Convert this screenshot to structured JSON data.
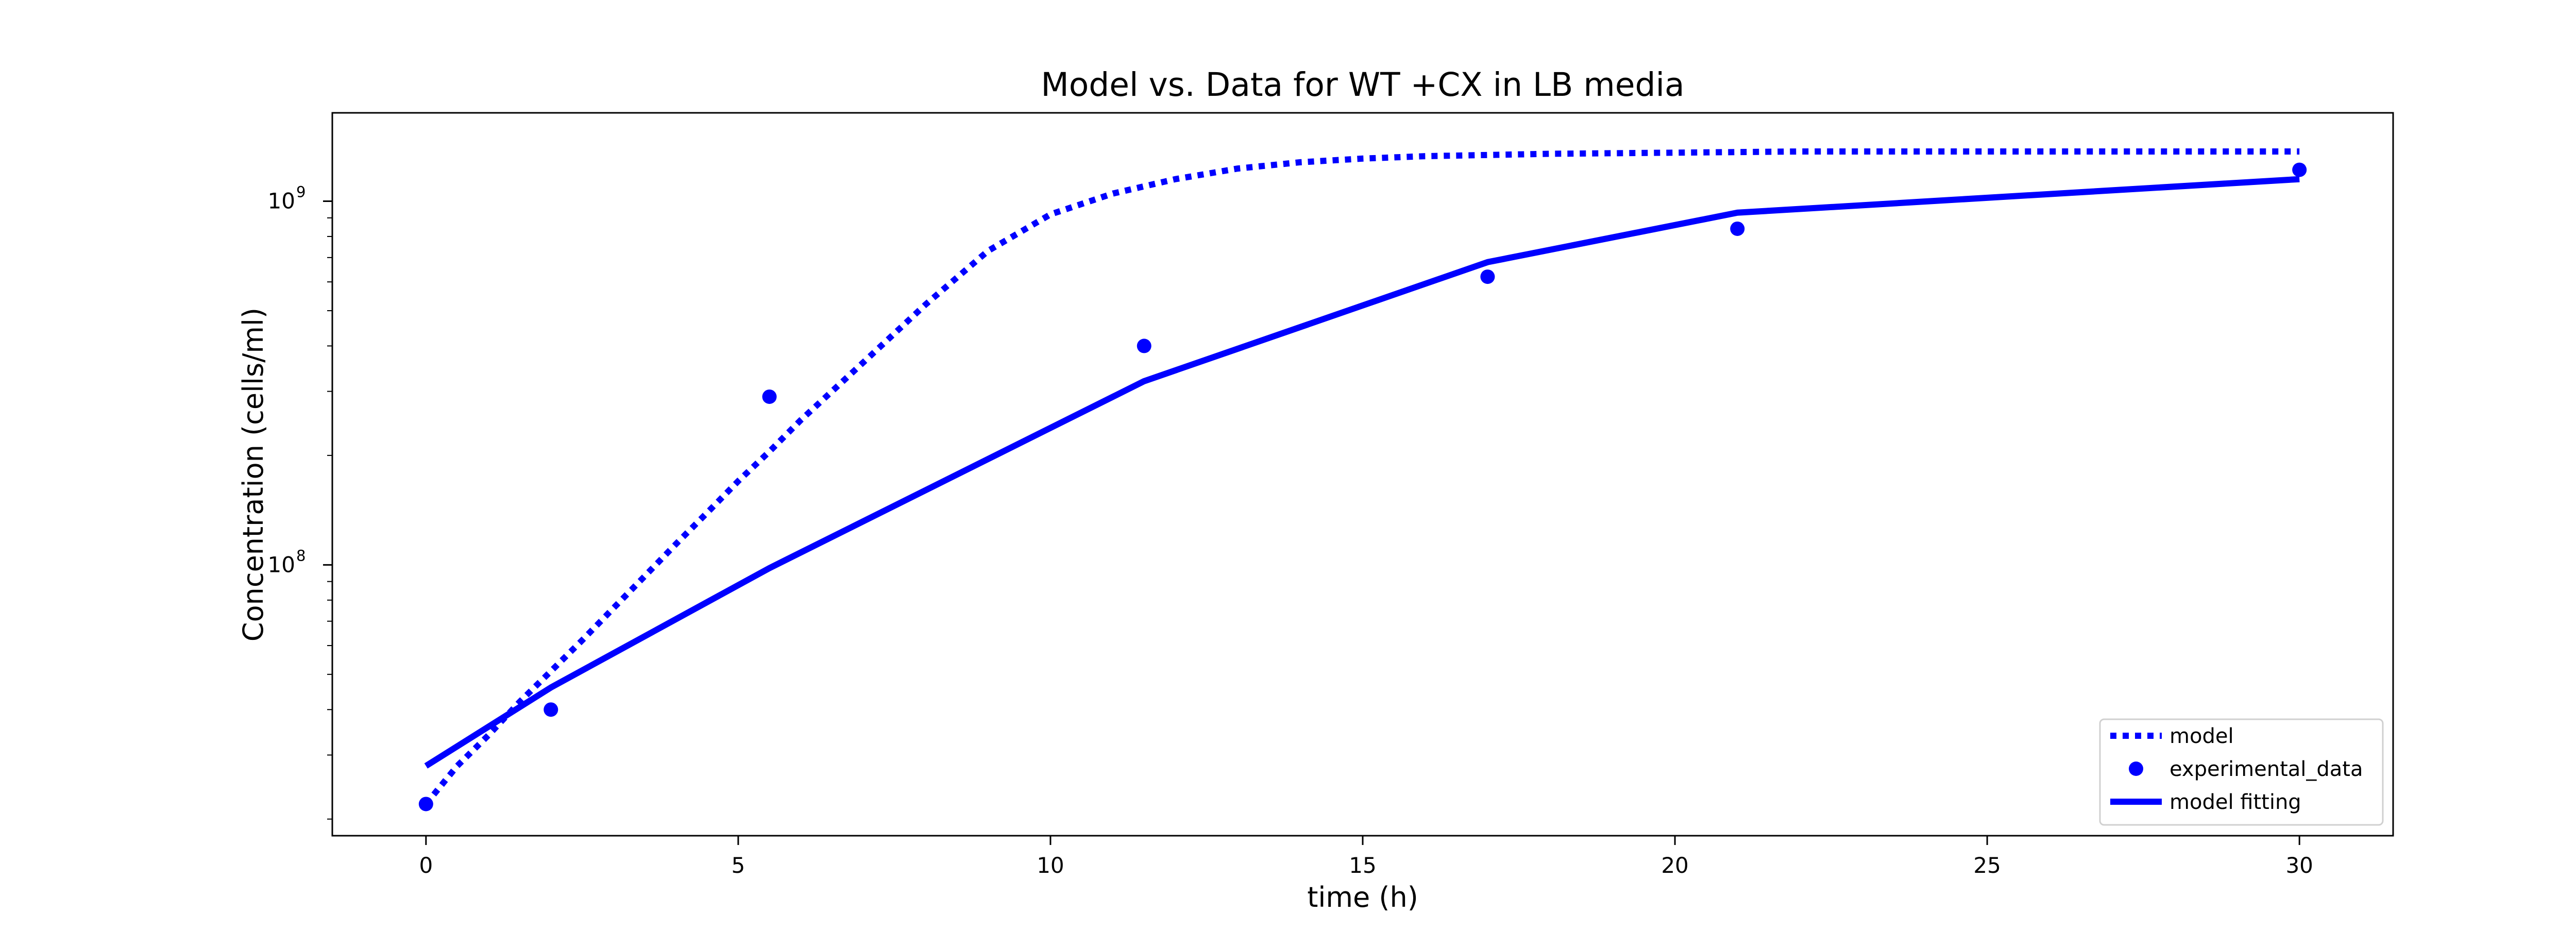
{
  "colors": {
    "series": "#0000ff",
    "axis": "#000000",
    "background": "#ffffff"
  },
  "chart_data": {
    "type": "line",
    "title": "Model vs. Data for WT +CX in LB media",
    "xlabel": "time (h)",
    "ylabel": "Concentration (cells/ml)",
    "xlim": [
      -1.5,
      31.5
    ],
    "ylim": [
      18000000.0,
      1750000000.0
    ],
    "yscale": "log",
    "grid": false,
    "legend_position": "bottom-right",
    "x_ticks": [
      0,
      5,
      10,
      15,
      20,
      25,
      30
    ],
    "x_tick_labels": [
      "0",
      "5",
      "10",
      "15",
      "20",
      "25",
      "30"
    ],
    "y_major_ticks": [
      {
        "value": 100000000.0,
        "base": "10",
        "exp": "8"
      },
      {
        "value": 1000000000.0,
        "base": "10",
        "exp": "9"
      }
    ],
    "y_minor_ticks": [
      20000000.0,
      30000000.0,
      40000000.0,
      50000000.0,
      60000000.0,
      70000000.0,
      80000000.0,
      90000000.0,
      200000000.0,
      300000000.0,
      400000000.0,
      500000000.0,
      600000000.0,
      700000000.0,
      800000000.0,
      900000000.0
    ],
    "series": [
      {
        "name": "model",
        "style": "dotted",
        "x": [
          0,
          0.5,
          1,
          1.5,
          2,
          2.5,
          3,
          3.5,
          4,
          4.5,
          5,
          5.5,
          6,
          7,
          8,
          9,
          10,
          11,
          12,
          13,
          14,
          15,
          16,
          18,
          20,
          22,
          24,
          26,
          28,
          30
        ],
        "values": [
          22000000.0,
          28000000.0,
          34000000.0,
          42000000.0,
          51000000.0,
          62000000.0,
          76000000.0,
          93000000.0,
          114000000.0,
          139000000.0,
          170000000.0,
          205000000.0,
          250000000.0,
          360000000.0,
          520000000.0,
          730000000.0,
          920000000.0,
          1050000000.0,
          1150000000.0,
          1230000000.0,
          1280000000.0,
          1310000000.0,
          1330000000.0,
          1350000000.0,
          1360000000.0,
          1370000000.0,
          1370000000.0,
          1370000000.0,
          1370000000.0,
          1370000000.0
        ]
      },
      {
        "name": "experimental_data",
        "style": "markers",
        "x": [
          0,
          2,
          5.5,
          11.5,
          17,
          21,
          30
        ],
        "values": [
          22000000.0,
          40000000.0,
          290000000.0,
          400000000.0,
          620000000.0,
          840000000.0,
          1220000000.0
        ]
      },
      {
        "name": "model fitting",
        "style": "solid",
        "x": [
          0,
          2,
          5.5,
          11.5,
          17,
          21,
          30
        ],
        "values": [
          28000000.0,
          46000000.0,
          98000000.0,
          320000000.0,
          680000000.0,
          930000000.0,
          1150000000.0
        ]
      }
    ]
  }
}
